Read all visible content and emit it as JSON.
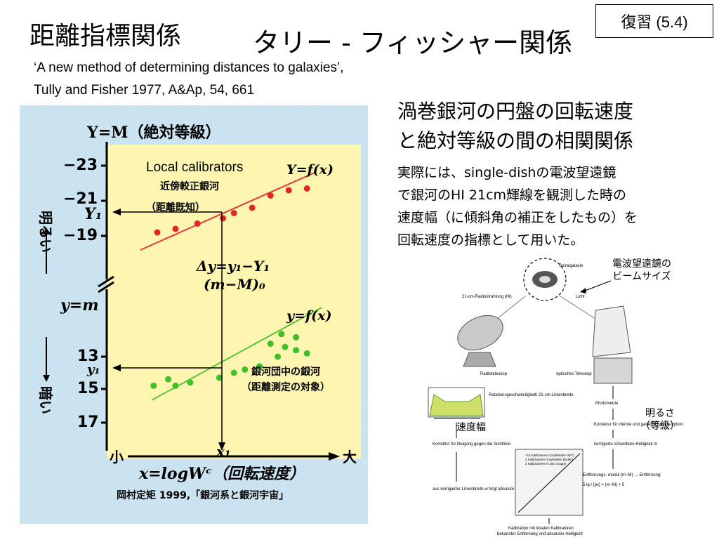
{
  "title": {
    "left": "距離指標関係",
    "right": "タリー - フィッシャー関係"
  },
  "badge": "復習 (5.4)",
  "reference": {
    "line1": "‘A new method of determining distances to galaxies’,",
    "line2": "Tully and Fisher 1977, A&Ap, 54, 661"
  },
  "heading": {
    "line1": "渦巻銀河の円盤の回転速度",
    "line2": "と絶対等級の間の相関関係"
  },
  "description": [
    "実際には、single-dishの電波望遠鏡",
    "で銀河のHI 21cm輝線を観測した時の",
    "速度幅（に傾斜角の補正をしたもの）を",
    "回転速度の指標として用いた。"
  ],
  "left_figure": {
    "y_axis_title": "Y=M（絶対等級）",
    "y_ticks_upper": [
      "−23",
      "−21",
      "Y₁",
      "−19"
    ],
    "y_ticks_lower": [
      "13",
      "y₁",
      "15",
      "17"
    ],
    "y_mid_label": "y=m",
    "brighter": "明るい",
    "darker": "暗い",
    "local_calibrators": "Local calibrators",
    "fit_upper": "Y=f(x)",
    "upper_sample": "近傍較正銀河",
    "upper_sample_note": "（距離既知）",
    "delta": "Δy=y₁−Y₁",
    "delta2": "(m−M)₀",
    "fit_lower": "y=f(x)",
    "lower_sample1": "銀河団中の銀河",
    "lower_sample2": "（距離測定の対象）",
    "x_small": "小",
    "x_large": "大",
    "x1": "x₁",
    "x_axis_title": "x=logWᶜ（回転速度）",
    "credit": "岡村定矩 1999,「銀河系と銀河宇宙」",
    "upper_points": [
      [
        0.5,
        -19.2
      ],
      [
        1.0,
        -19.4
      ],
      [
        1.6,
        -19.7
      ],
      [
        2.3,
        -20.0
      ],
      [
        2.6,
        -20.3
      ],
      [
        3.1,
        -20.6
      ],
      [
        3.6,
        -21.3
      ],
      [
        4.1,
        -21.6
      ],
      [
        4.6,
        -21.7
      ]
    ],
    "lower_points": [
      [
        0.4,
        14.8
      ],
      [
        0.8,
        14.4
      ],
      [
        1.0,
        14.8
      ],
      [
        1.4,
        14.6
      ],
      [
        2.2,
        14.3
      ],
      [
        2.6,
        14.0
      ],
      [
        2.9,
        13.8
      ],
      [
        3.3,
        13.6
      ],
      [
        3.8,
        13.0
      ],
      [
        4.0,
        12.4
      ],
      [
        4.3,
        12.6
      ],
      [
        4.6,
        12.8
      ],
      [
        3.6,
        12.2
      ],
      [
        3.9,
        11.6
      ],
      [
        4.3,
        11.8
      ]
    ]
  },
  "right_figure": {
    "spiral": "Spiralgalaxie",
    "hi_line": "21-cm-Radiostrahlung (HI)",
    "light": "Licht",
    "radio": "Radioteleskop",
    "optical": "optisches Teleskop",
    "rotation": "Rotationsgeschwindigkeit/ 21-cm-Linienbreite",
    "photometry": "Photometrie",
    "corr_incl": "Korrektur für Neigung gegen die Sichtlinie",
    "corr_abs": "Korrektur für interne und galaktische Absorption",
    "corr_mag": "korrigierte scheinbare Helligkeit m",
    "linewidth": "aus korrigierter Linienbreite w folgt absolute Helligkeit M",
    "modulus": "Entfernungs- modul (m−M) → Entfernung:",
    "formula": "5 lg r [pc] = (m−M) + 5",
    "calibration": "Kalibration mit lokalen Kalibratoren",
    "calibration2": "bekannter Entfernung und absoluter Helligkeit",
    "legend1": "+12 Kalibratoren (Cepheiden HST)",
    "legend2": "4 Kalibratoren (Cepheiden Boden)",
    "legend3": "2 Kalibratoren M 101-Gruppe"
  },
  "annotations": {
    "beam1": "電波望遠鏡の",
    "beam2": "ビームサイズ",
    "mag1": "明るさ",
    "mag2": "（等級）",
    "speed": "速度幅"
  }
}
